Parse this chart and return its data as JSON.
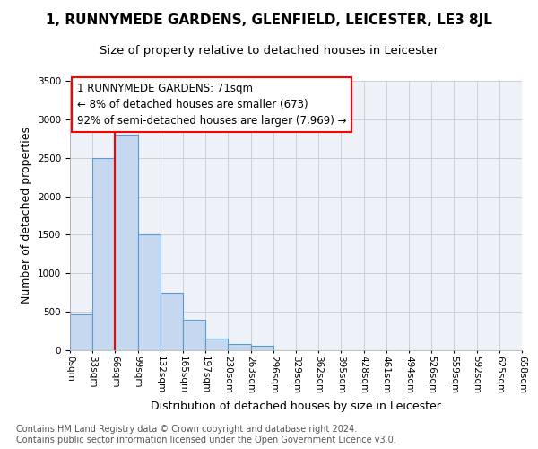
{
  "title": "1, RUNNYMEDE GARDENS, GLENFIELD, LEICESTER, LE3 8JL",
  "subtitle": "Size of property relative to detached houses in Leicester",
  "xlabel": "Distribution of detached houses by size in Leicester",
  "ylabel": "Number of detached properties",
  "bar_values": [
    470,
    2500,
    2800,
    1500,
    750,
    400,
    155,
    85,
    55,
    0,
    0,
    0,
    0,
    0,
    0,
    0,
    0,
    0,
    0,
    0
  ],
  "bin_edges": [
    "0sqm",
    "33sqm",
    "66sqm",
    "99sqm",
    "132sqm",
    "165sqm",
    "197sqm",
    "230sqm",
    "263sqm",
    "296sqm",
    "329sqm",
    "362sqm",
    "395sqm",
    "428sqm",
    "461sqm",
    "494sqm",
    "526sqm",
    "559sqm",
    "592sqm",
    "625sqm",
    "658sqm"
  ],
  "bar_color": "#c5d8ef",
  "bar_edge_color": "#5b9bd5",
  "highlight_color": "#ff0000",
  "property_line_bin": 2,
  "annotation_text": "1 RUNNYMEDE GARDENS: 71sqm\n← 8% of detached houses are smaller (673)\n92% of semi-detached houses are larger (7,969) →",
  "annotation_box_color": "#ffffff",
  "annotation_box_edge": "#ff0000",
  "ylim": [
    0,
    3500
  ],
  "yticks": [
    0,
    500,
    1000,
    1500,
    2000,
    2500,
    3000,
    3500
  ],
  "footer_line1": "Contains HM Land Registry data © Crown copyright and database right 2024.",
  "footer_line2": "Contains public sector information licensed under the Open Government Licence v3.0.",
  "bg_color": "#ffffff",
  "plot_bg_color": "#eef2f8",
  "grid_color": "#c8d0dc",
  "title_fontsize": 11,
  "subtitle_fontsize": 9.5,
  "axis_label_fontsize": 9,
  "tick_fontsize": 7.5,
  "annotation_fontsize": 8.5,
  "footer_fontsize": 7
}
